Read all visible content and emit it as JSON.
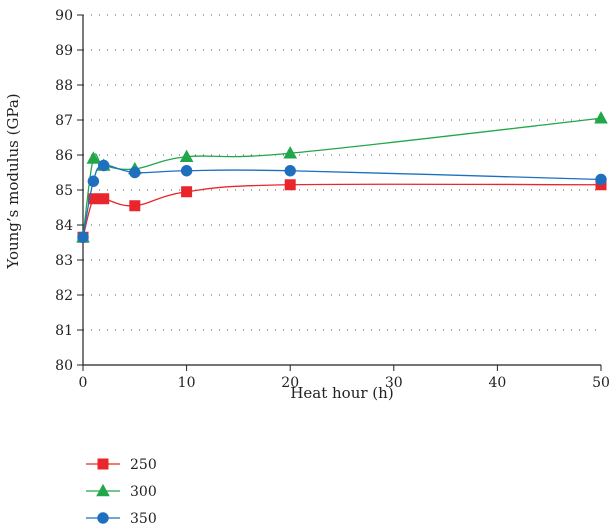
{
  "chart_data": {
    "type": "line",
    "xlabel": "Heat hour (h)",
    "ylabel": "Young’s modulus (GPa)",
    "xlim": [
      0,
      50
    ],
    "ylim": [
      80,
      90
    ],
    "xticks": [
      0,
      10,
      20,
      30,
      40,
      50
    ],
    "yticks": [
      80,
      81,
      82,
      83,
      84,
      85,
      86,
      87,
      88,
      89,
      90
    ],
    "grid": "horizontal dotted",
    "legend_position": "bottom-left",
    "series": [
      {
        "name": "250",
        "color": "#e8262b",
        "marker": "square",
        "x": [
          0,
          1,
          2,
          5,
          10,
          20,
          50
        ],
        "y": [
          83.65,
          84.75,
          84.75,
          84.55,
          84.95,
          85.15,
          85.15
        ]
      },
      {
        "name": "300",
        "color": "#22a64a",
        "marker": "triangle",
        "x": [
          0,
          1,
          2,
          5,
          10,
          20,
          50
        ],
        "y": [
          83.65,
          85.9,
          85.7,
          85.6,
          85.95,
          86.05,
          87.05
        ]
      },
      {
        "name": "350",
        "color": "#1f6fbf",
        "marker": "circle",
        "x": [
          0,
          1,
          2,
          5,
          10,
          20,
          50
        ],
        "y": [
          83.65,
          85.25,
          85.7,
          85.5,
          85.55,
          85.55,
          85.3
        ]
      }
    ]
  }
}
